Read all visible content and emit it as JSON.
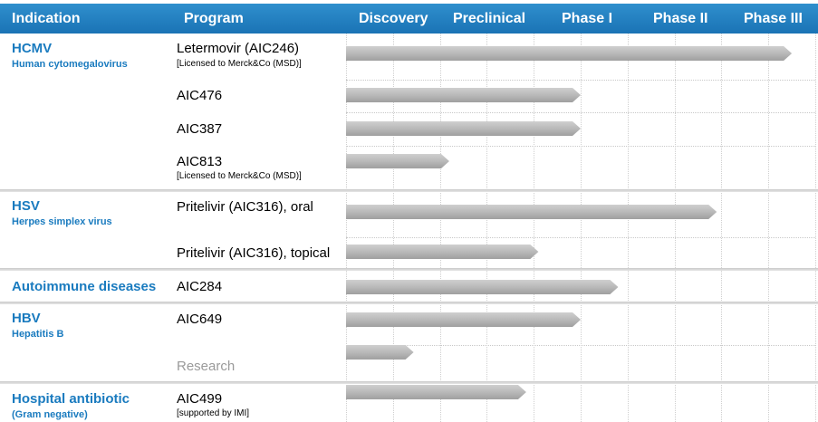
{
  "header": {
    "indication": "Indication",
    "program": "Program",
    "phases": [
      "Discovery",
      "Preclinical",
      "Phase I",
      "Phase II",
      "Phase III"
    ]
  },
  "colors": {
    "header_bg": "#1f7ec0",
    "indication_text": "#1a7bbf",
    "bar_fill": "#b8b8b8"
  },
  "chart_data": {
    "type": "bar",
    "orientation": "horizontal",
    "stages": [
      "Discovery",
      "Preclinical",
      "Phase I",
      "Phase II",
      "Phase III"
    ],
    "value_unit": "stages completed (0 = start of Discovery, 5 = end of Phase III)",
    "xlim": [
      0,
      5
    ],
    "groups": [
      {
        "indication": "HCMV",
        "subtitle": "Human cytomegalovirus",
        "programs": [
          {
            "name": "Letermovir (AIC246)",
            "note": "[Licensed to Merck&Co (MSD)]",
            "value": 4.75
          },
          {
            "name": "AIC476",
            "note": "",
            "value": 2.5
          },
          {
            "name": "AIC387",
            "note": "",
            "value": 2.5
          },
          {
            "name": "AIC813",
            "note": "[Licensed to Merck&Co (MSD)]",
            "value": 1.1
          }
        ]
      },
      {
        "indication": "HSV",
        "subtitle": "Herpes simplex virus",
        "programs": [
          {
            "name": "Pritelivir (AIC316), oral",
            "note": "",
            "value": 3.95
          },
          {
            "name": "Pritelivir (AIC316), topical",
            "note": "",
            "value": 2.05
          }
        ]
      },
      {
        "indication": "Autoimmune diseases",
        "subtitle": "",
        "programs": [
          {
            "name": "AIC284",
            "note": "",
            "value": 2.9
          }
        ]
      },
      {
        "indication": "HBV",
        "subtitle": "Hepatitis B",
        "programs": [
          {
            "name": "AIC649",
            "note": "",
            "value": 2.5
          },
          {
            "name": "Research",
            "note": "",
            "value": 0.72,
            "dim": true
          }
        ]
      },
      {
        "indication": "Hospital antibiotic",
        "subtitle": "(Gram negative)",
        "programs": [
          {
            "name": "AIC499",
            "note": "[supported by IMI]",
            "value": 1.92
          }
        ]
      }
    ]
  }
}
